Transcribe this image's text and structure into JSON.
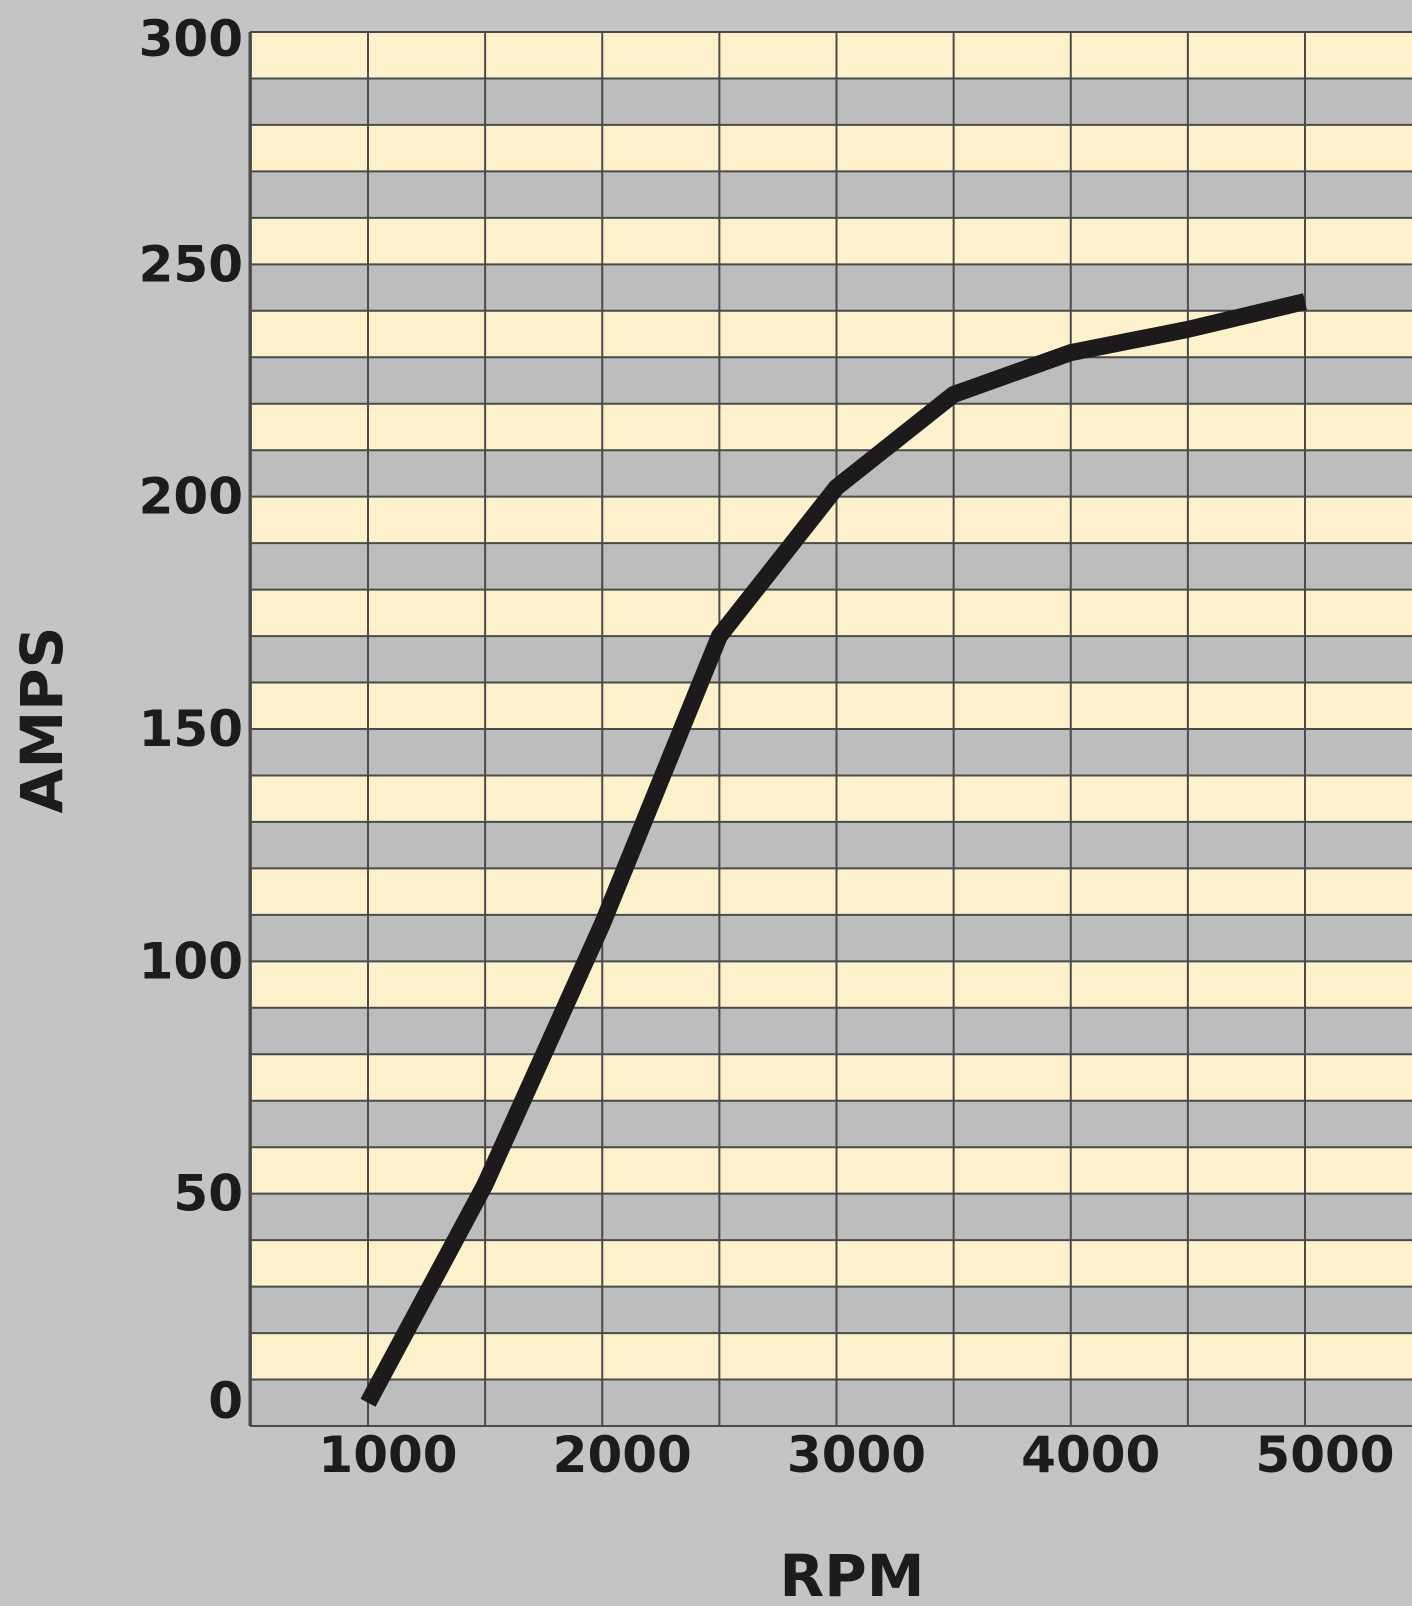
{
  "chart_data": {
    "type": "line",
    "title": "",
    "xlabel": "RPM",
    "ylabel": "AMPS",
    "xlim": [
      500,
      5500
    ],
    "ylim": [
      0,
      300
    ],
    "x_ticks": [
      1000,
      2000,
      3000,
      4000,
      5000
    ],
    "x_tick_labels": [
      "1000",
      "2000",
      "3000",
      "4000",
      "5000"
    ],
    "y_ticks": [
      0,
      50,
      100,
      150,
      200,
      250,
      300
    ],
    "y_tick_labels": [
      "0",
      "50",
      "100",
      "150",
      "200",
      "250",
      "300"
    ],
    "x_grid_step": 500,
    "y_grid_step": 10,
    "grid": true,
    "legend": "none",
    "colors": {
      "background": "#c4c4c4",
      "band_light": "#fdf1cc",
      "band_gray": "#bdbdbd",
      "grid": "#4a4a4a",
      "line": "#1c1a1a",
      "text": "#1c1c1c"
    },
    "series": [
      {
        "x": [
          1000,
          1500,
          2000,
          2500,
          3000,
          3500,
          4000,
          4500,
          5000
        ],
        "values": [
          5,
          52,
          108,
          170,
          202,
          222,
          231,
          236,
          242
        ]
      }
    ]
  }
}
